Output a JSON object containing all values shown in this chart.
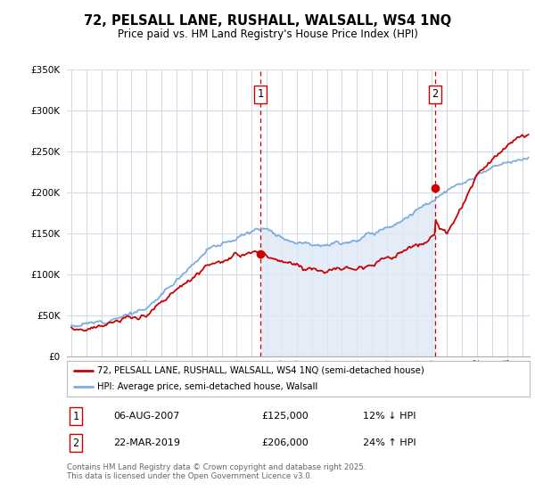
{
  "title_line1": "72, PELSALL LANE, RUSHALL, WALSALL, WS4 1NQ",
  "title_line2": "Price paid vs. HM Land Registry's House Price Index (HPI)",
  "legend_label_red": "72, PELSALL LANE, RUSHALL, WALSALL, WS4 1NQ (semi-detached house)",
  "legend_label_blue": "HPI: Average price, semi-detached house, Walsall",
  "sale1_date": "06-AUG-2007",
  "sale1_price": "£125,000",
  "sale1_hpi": "12% ↓ HPI",
  "sale2_date": "22-MAR-2019",
  "sale2_price": "£206,000",
  "sale2_hpi": "24% ↑ HPI",
  "footnote": "Contains HM Land Registry data © Crown copyright and database right 2025.\nThis data is licensed under the Open Government Licence v3.0.",
  "sale1_year": 2007.59,
  "sale1_value": 125000,
  "sale2_year": 2019.22,
  "sale2_value": 206000,
  "red_color": "#cc0000",
  "blue_color": "#7aade0",
  "fill_color": "#dde8f5",
  "dashed_line_color": "#cc0000",
  "background_color": "#ffffff",
  "grid_color": "#d0d8e8",
  "ylim_min": 0,
  "ylim_max": 350000,
  "xlim_min": 1994.7,
  "xlim_max": 2025.5,
  "yticks": [
    0,
    50000,
    100000,
    150000,
    200000,
    250000,
    300000,
    350000
  ]
}
